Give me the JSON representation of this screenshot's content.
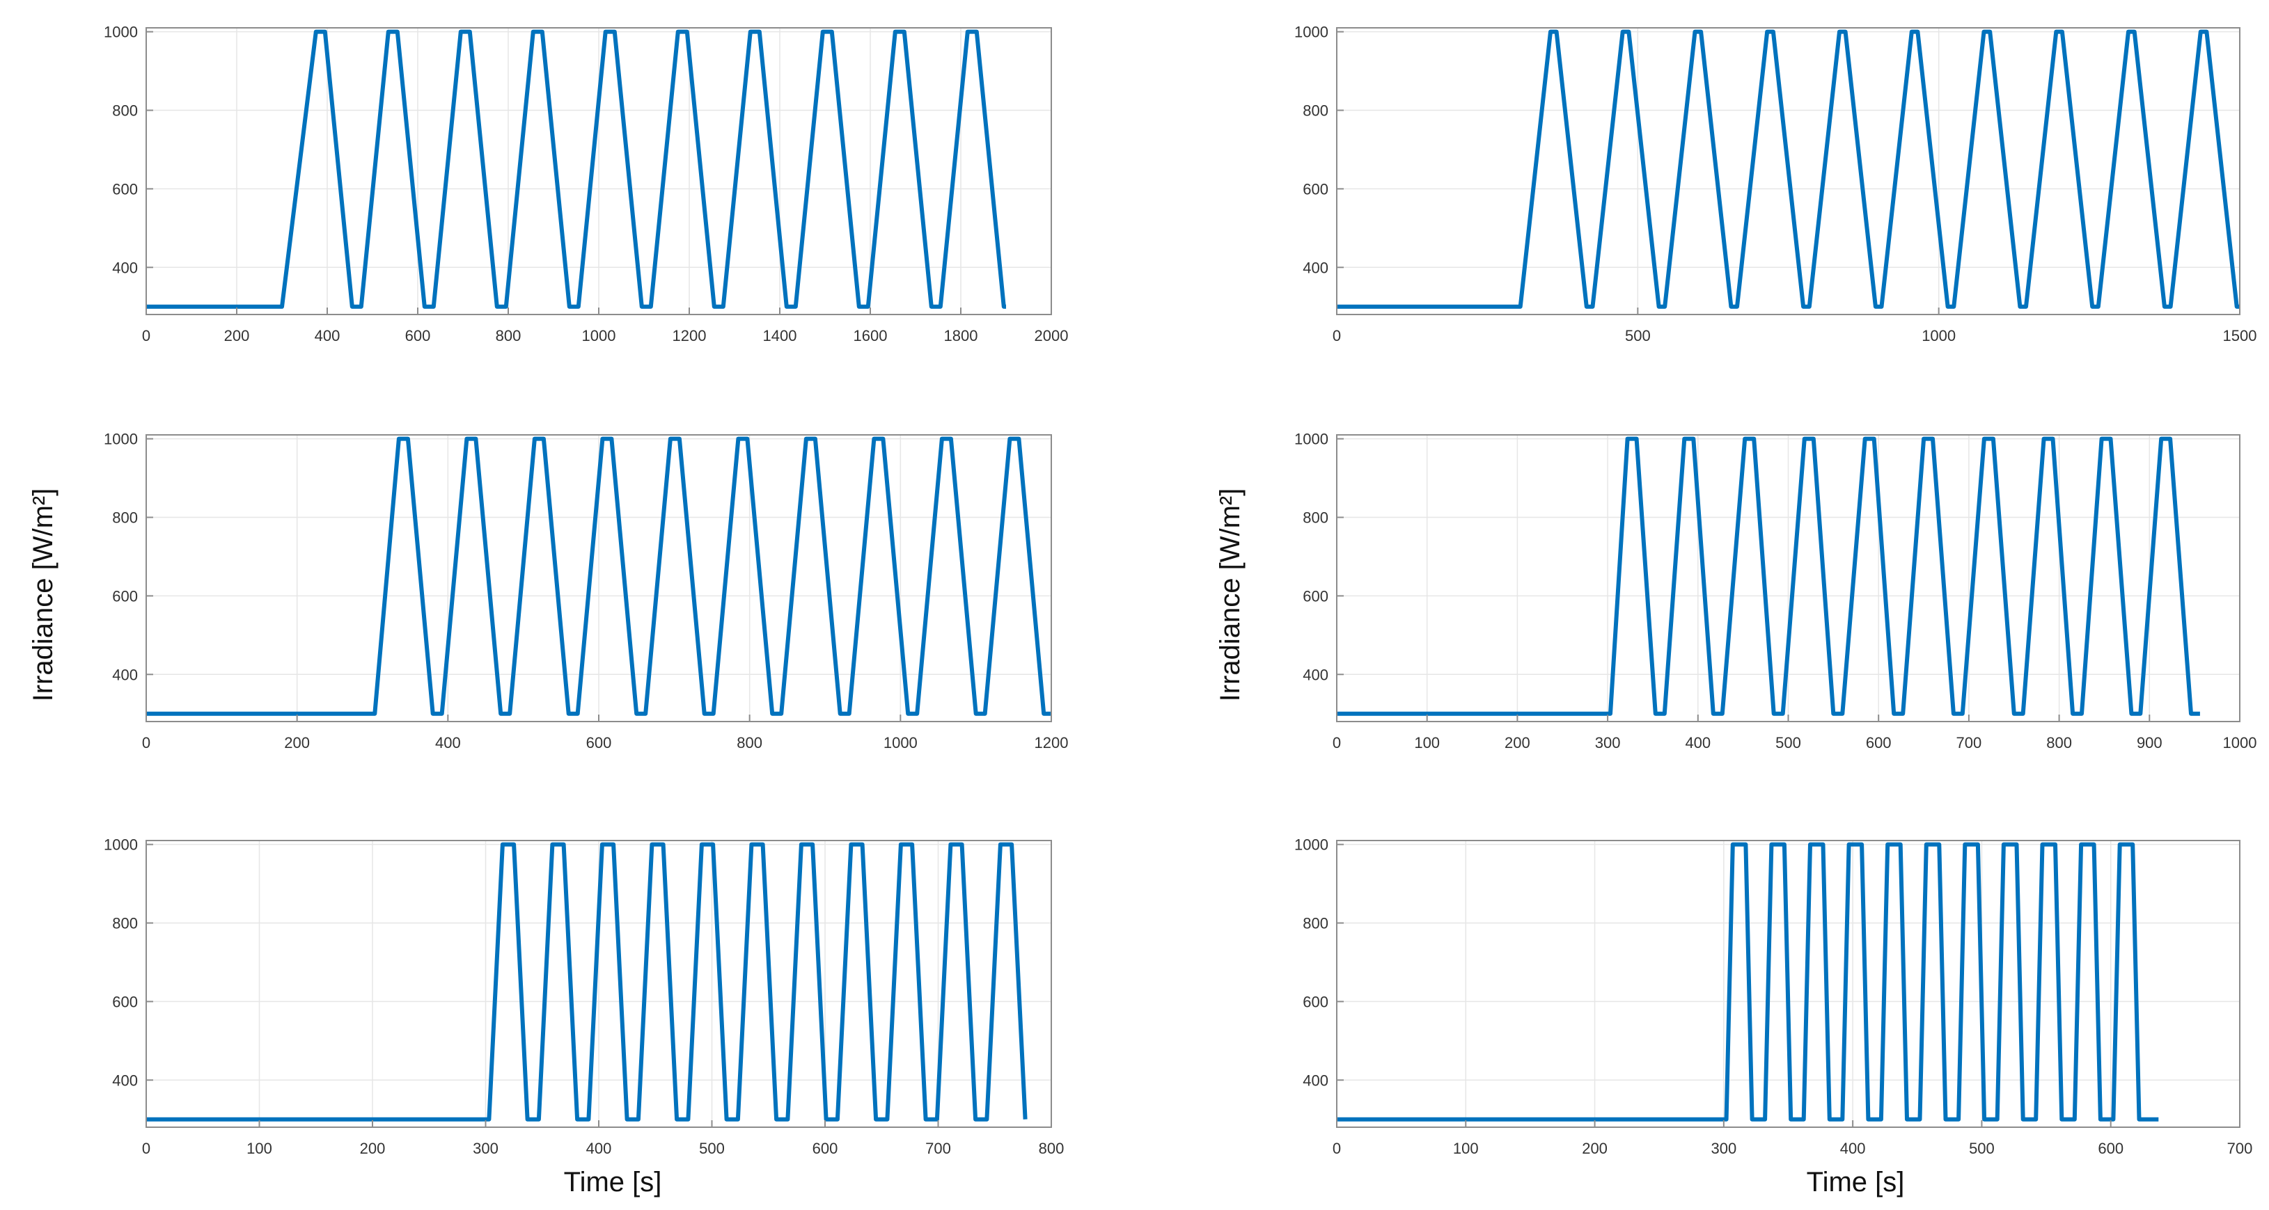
{
  "figure": {
    "ylabel": "Irradiance [W/m²]",
    "xlabel": "Time [s]",
    "line_color": "#0072BD",
    "grid": true
  },
  "chart_data": [
    {
      "type": "line",
      "grid": true,
      "xlim": [
        0,
        2000
      ],
      "ylim": [
        280,
        1010
      ],
      "xticks": [
        0,
        200,
        400,
        600,
        800,
        1000,
        1200,
        1400,
        1600,
        1800,
        2000
      ],
      "yticks": [
        400,
        600,
        800,
        1000
      ],
      "series": [
        {
          "x": [
            0,
            300,
            375,
            395,
            455,
            475,
            535,
            555,
            615,
            635,
            695,
            715,
            775,
            795,
            855,
            875,
            935,
            955,
            1015,
            1035,
            1095,
            1115,
            1175,
            1195,
            1255,
            1275,
            1335,
            1355,
            1415,
            1435,
            1495,
            1515,
            1575,
            1595,
            1655,
            1675,
            1735,
            1755,
            1815,
            1835,
            1895,
            1900
          ],
          "y": [
            300,
            300,
            1000,
            1000,
            300,
            300,
            1000,
            1000,
            300,
            300,
            1000,
            1000,
            300,
            300,
            1000,
            1000,
            300,
            300,
            1000,
            1000,
            300,
            300,
            1000,
            1000,
            300,
            300,
            1000,
            1000,
            300,
            300,
            1000,
            1000,
            300,
            300,
            1000,
            1000,
            300,
            300,
            1000,
            1000,
            300,
            300
          ]
        }
      ]
    },
    {
      "type": "line",
      "grid": true,
      "xlim": [
        0,
        1500
      ],
      "ylim": [
        280,
        1010
      ],
      "xticks": [
        0,
        500,
        1000,
        1500
      ],
      "yticks": [
        400,
        600,
        800,
        1000
      ],
      "series": [
        {
          "x": [
            0,
            305,
            355,
            365,
            415,
            425,
            475,
            485,
            535,
            545,
            595,
            605,
            655,
            665,
            715,
            725,
            775,
            785,
            835,
            845,
            895,
            905,
            955,
            965,
            1015,
            1025,
            1075,
            1085,
            1135,
            1145,
            1195,
            1205,
            1255,
            1265,
            1315,
            1325,
            1375,
            1385,
            1435,
            1445,
            1495,
            1500
          ],
          "y": [
            300,
            300,
            1000,
            1000,
            300,
            300,
            1000,
            1000,
            300,
            300,
            1000,
            1000,
            300,
            300,
            1000,
            1000,
            300,
            300,
            1000,
            1000,
            300,
            300,
            1000,
            1000,
            300,
            300,
            1000,
            1000,
            300,
            300,
            1000,
            1000,
            300,
            300,
            1000,
            1000,
            300,
            300,
            1000,
            1000,
            300,
            300
          ]
        }
      ]
    },
    {
      "type": "line",
      "grid": true,
      "xlim": [
        0,
        1200
      ],
      "ylim": [
        280,
        1010
      ],
      "xticks": [
        0,
        200,
        400,
        600,
        800,
        1000,
        1200
      ],
      "yticks": [
        400,
        600,
        800,
        1000
      ],
      "series": [
        {
          "x": [
            0,
            303,
            335,
            347,
            380,
            392,
            425,
            437,
            470,
            482,
            515,
            527,
            560,
            572,
            605,
            617,
            650,
            662,
            695,
            707,
            740,
            752,
            785,
            797,
            830,
            842,
            875,
            887,
            920,
            932,
            965,
            977,
            1010,
            1022,
            1055,
            1067,
            1100,
            1112,
            1145,
            1157,
            1190,
            1200
          ],
          "y": [
            300,
            300,
            1000,
            1000,
            300,
            300,
            1000,
            1000,
            300,
            300,
            1000,
            1000,
            300,
            300,
            1000,
            1000,
            300,
            300,
            1000,
            1000,
            300,
            300,
            1000,
            1000,
            300,
            300,
            1000,
            1000,
            300,
            300,
            1000,
            1000,
            300,
            300,
            1000,
            1000,
            300,
            300,
            1000,
            1000,
            300,
            300
          ]
        }
      ]
    },
    {
      "type": "line",
      "grid": true,
      "xlim": [
        0,
        1000
      ],
      "ylim": [
        280,
        1010
      ],
      "xticks": [
        0,
        100,
        200,
        300,
        400,
        500,
        600,
        700,
        800,
        900,
        1000
      ],
      "yticks": [
        400,
        600,
        800,
        1000
      ],
      "series": [
        {
          "x": [
            0,
            303,
            322,
            332,
            353,
            363,
            385,
            395,
            417,
            427,
            452,
            462,
            484,
            494,
            518,
            528,
            550,
            560,
            585,
            595,
            617,
            627,
            650,
            660,
            683,
            693,
            717,
            727,
            750,
            760,
            783,
            793,
            815,
            825,
            847,
            857,
            880,
            890,
            913,
            923,
            946,
            956
          ],
          "y": [
            300,
            300,
            1000,
            1000,
            300,
            300,
            1000,
            1000,
            300,
            300,
            1000,
            1000,
            300,
            300,
            1000,
            1000,
            300,
            300,
            1000,
            1000,
            300,
            300,
            1000,
            1000,
            300,
            300,
            1000,
            1000,
            300,
            300,
            1000,
            1000,
            300,
            300,
            1000,
            1000,
            300,
            300,
            1000,
            1000,
            300,
            300
          ]
        }
      ]
    },
    {
      "type": "line",
      "grid": true,
      "xlim": [
        0,
        800
      ],
      "ylim": [
        280,
        1010
      ],
      "xticks": [
        0,
        100,
        200,
        300,
        400,
        500,
        600,
        700,
        800
      ],
      "yticks": [
        400,
        600,
        800,
        1000
      ],
      "series": [
        {
          "x": [
            0,
            303,
            315,
            325,
            337,
            347,
            359,
            369,
            381,
            391,
            403,
            413,
            425,
            435,
            447,
            457,
            469,
            479,
            491,
            501,
            513,
            523,
            535,
            545,
            557,
            567,
            579,
            589,
            601,
            611,
            623,
            633,
            645,
            655,
            667,
            677,
            689,
            699,
            711,
            721,
            733,
            743,
            755,
            765,
            777
          ],
          "y": [
            300,
            300,
            1000,
            1000,
            300,
            300,
            1000,
            1000,
            300,
            300,
            1000,
            1000,
            300,
            300,
            1000,
            1000,
            300,
            300,
            1000,
            1000,
            300,
            300,
            1000,
            1000,
            300,
            300,
            1000,
            1000,
            300,
            300,
            1000,
            1000,
            300,
            300,
            1000,
            1000,
            300,
            300,
            1000,
            1000,
            300,
            300,
            1000,
            1000,
            300
          ]
        }
      ]
    },
    {
      "type": "line",
      "grid": true,
      "xlim": [
        0,
        700
      ],
      "ylim": [
        280,
        1010
      ],
      "xticks": [
        0,
        100,
        200,
        300,
        400,
        500,
        600,
        700
      ],
      "yticks": [
        400,
        600,
        800,
        1000
      ],
      "series": [
        {
          "x": [
            0,
            302,
            307,
            317,
            322,
            332,
            337,
            347,
            352,
            362,
            367,
            377,
            382,
            392,
            397,
            407,
            412,
            422,
            427,
            437,
            442,
            452,
            457,
            467,
            472,
            482,
            487,
            497,
            502,
            512,
            517,
            527,
            532,
            542,
            547,
            557,
            562,
            572,
            577,
            587,
            592,
            602,
            607,
            617,
            622,
            632,
            637
          ],
          "y": [
            300,
            300,
            1000,
            1000,
            300,
            300,
            1000,
            1000,
            300,
            300,
            1000,
            1000,
            300,
            300,
            1000,
            1000,
            300,
            300,
            1000,
            1000,
            300,
            300,
            1000,
            1000,
            300,
            300,
            1000,
            1000,
            300,
            300,
            1000,
            1000,
            300,
            300,
            1000,
            1000,
            300,
            300,
            1000,
            1000,
            300,
            300,
            1000,
            1000,
            300,
            300,
            300
          ]
        }
      ]
    }
  ]
}
